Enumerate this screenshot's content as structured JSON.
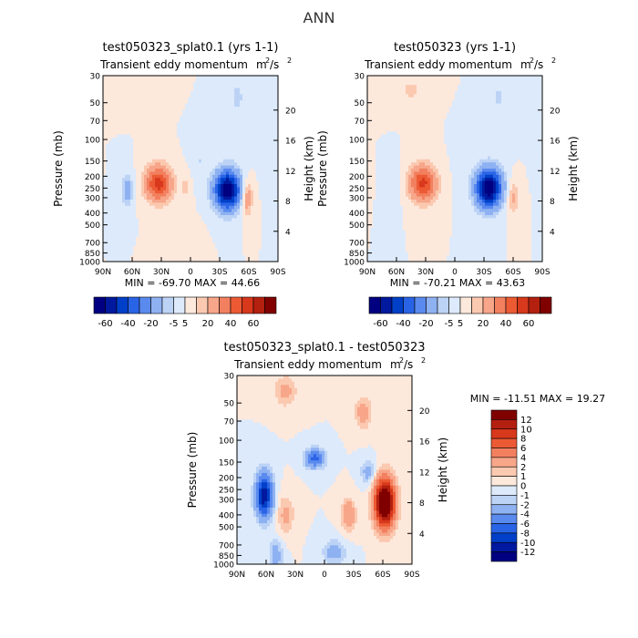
{
  "title": "ANN",
  "colors": {
    "neg": [
      "#000080",
      "#00199e",
      "#0040c8",
      "#2a64e6",
      "#5a8aee",
      "#8eb1f2",
      "#bcd3f6",
      "#ddeafb"
    ],
    "pos": [
      "#fde8dc",
      "#fbc9b0",
      "#f7a68a",
      "#f2805f",
      "#ec5a34",
      "#d8381b",
      "#b4200f",
      "#800000"
    ]
  },
  "chart_data": [
    {
      "type": "contour",
      "id": "p1",
      "title": "test050323_splat0.1 (yrs 1-1)",
      "subtitle": "Transient eddy momentum",
      "units_base": "m",
      "units_sup1": "2",
      "units_mid": "/s",
      "units_sup2": "2",
      "ylabel": "Pressure (mb)",
      "ylabel_right": "Height (km)",
      "yticks": [
        "30",
        "50",
        "70",
        "100",
        "150",
        "200",
        "250",
        "300",
        "400",
        "500",
        "700",
        "850",
        "1000"
      ],
      "ytick_values": [
        30,
        50,
        70,
        100,
        150,
        200,
        250,
        300,
        400,
        500,
        700,
        850,
        1000
      ],
      "height_ticks": [
        "4",
        "8",
        "12",
        "16",
        "20"
      ],
      "height_values": [
        4,
        8,
        12,
        16,
        20
      ],
      "xticks": [
        "90N",
        "60N",
        "30N",
        "0",
        "30S",
        "60S",
        "90S"
      ],
      "xtick_values": [
        90,
        60,
        30,
        0,
        -30,
        -60,
        -90
      ],
      "stats": "MIN = -69.70   MAX =  44.66",
      "cbar_labels": [
        "-60",
        "-40",
        "-20",
        "-5",
        "5",
        "20",
        "40",
        "60"
      ],
      "features": [
        {
          "lat": 33,
          "p": 230,
          "amp": 44.66,
          "slat": 9,
          "slogp": 0.22
        },
        {
          "lat": -38,
          "p": 260,
          "amp": -69.7,
          "slat": 9,
          "slogp": 0.25
        },
        {
          "lat": 65,
          "p": 260,
          "amp": -14,
          "slat": 4,
          "slogp": 0.22
        },
        {
          "lat": -58,
          "p": 300,
          "amp": 18,
          "slat": 4,
          "slogp": 0.22
        },
        {
          "lat": 5,
          "p": 250,
          "amp": 6,
          "slat": 4,
          "slogp": 0.2
        },
        {
          "lat": -10,
          "p": 150,
          "amp": -5,
          "slat": 6,
          "slogp": 0.3
        },
        {
          "lat": 45,
          "p": 40,
          "amp": 5,
          "slat": 10,
          "slogp": 0.2
        },
        {
          "lat": -48,
          "p": 45,
          "amp": -7,
          "slat": 5,
          "slogp": 0.25
        },
        {
          "lat": 10,
          "p": 600,
          "amp": 3,
          "slat": 10,
          "slogp": 0.2
        }
      ]
    },
    {
      "type": "contour",
      "id": "p2",
      "title": "test050323 (yrs 1-1)",
      "subtitle": "Transient eddy momentum",
      "units_base": "m",
      "units_sup1": "2",
      "units_mid": "/s",
      "units_sup2": "2",
      "ylabel": "Pressure (mb)",
      "ylabel_right": "Height (km)",
      "yticks": [
        "30",
        "50",
        "70",
        "100",
        "150",
        "200",
        "250",
        "300",
        "400",
        "500",
        "700",
        "850",
        "1000"
      ],
      "ytick_values": [
        30,
        50,
        70,
        100,
        150,
        200,
        250,
        300,
        400,
        500,
        700,
        850,
        1000
      ],
      "height_ticks": [
        "4",
        "8",
        "12",
        "16",
        "20"
      ],
      "height_values": [
        4,
        8,
        12,
        16,
        20
      ],
      "xticks": [
        "90N",
        "60N",
        "30N",
        "0",
        "30S",
        "60S",
        "90S"
      ],
      "xtick_values": [
        90,
        60,
        30,
        0,
        -30,
        -60,
        -90
      ],
      "stats": "MIN = -70.21   MAX =  43.63",
      "cbar_labels": [
        "-60",
        "-40",
        "-20",
        "-5",
        "5",
        "20",
        "40",
        "60"
      ],
      "features": [
        {
          "lat": 33,
          "p": 230,
          "amp": 43.63,
          "slat": 9,
          "slogp": 0.22
        },
        {
          "lat": -35,
          "p": 250,
          "amp": -70.21,
          "slat": 9,
          "slogp": 0.25
        },
        {
          "lat": -60,
          "p": 300,
          "amp": 12,
          "slat": 4,
          "slogp": 0.22
        },
        {
          "lat": 62,
          "p": 250,
          "amp": -5,
          "slat": 4,
          "slogp": 0.25
        },
        {
          "lat": -8,
          "p": 150,
          "amp": -4,
          "slat": 5,
          "slogp": 0.3
        },
        {
          "lat": 45,
          "p": 40,
          "amp": 6,
          "slat": 10,
          "slogp": 0.2
        },
        {
          "lat": -45,
          "p": 45,
          "amp": -6,
          "slat": 5,
          "slogp": 0.25
        }
      ]
    },
    {
      "type": "contour",
      "id": "p3",
      "title": "test050323_splat0.1 - test050323",
      "subtitle": "Transient eddy momentum",
      "units_base": "m",
      "units_sup1": "2",
      "units_mid": "/s",
      "units_sup2": "2",
      "ylabel": "Pressure (mb)",
      "ylabel_right": "Height (km)",
      "yticks": [
        "30",
        "50",
        "70",
        "100",
        "150",
        "200",
        "250",
        "300",
        "400",
        "500",
        "700",
        "850",
        "1000"
      ],
      "ytick_values": [
        30,
        50,
        70,
        100,
        150,
        200,
        250,
        300,
        400,
        500,
        700,
        850,
        1000
      ],
      "height_ticks": [
        "4",
        "8",
        "12",
        "16",
        "20"
      ],
      "height_values": [
        4,
        8,
        12,
        16,
        20
      ],
      "xticks": [
        "90N",
        "60N",
        "30N",
        "0",
        "30S",
        "60S",
        "90S"
      ],
      "xtick_values": [
        90,
        60,
        30,
        0,
        -30,
        -60,
        -90
      ],
      "stats": "MIN = -11.51   MAX =  19.27",
      "cbar_labels": [
        "12",
        "10",
        "8",
        "6",
        "4",
        "2",
        "1",
        "0",
        "-1",
        "-2",
        "-4",
        "-6",
        "-8",
        "-10",
        "-12"
      ],
      "features": [
        {
          "lat": 62,
          "p": 280,
          "amp": -11.51,
          "slat": 6,
          "slogp": 0.28
        },
        {
          "lat": -62,
          "p": 320,
          "amp": 19.27,
          "slat": 7,
          "slogp": 0.3
        },
        {
          "lat": 10,
          "p": 140,
          "amp": -7,
          "slat": 7,
          "slogp": 0.12
        },
        {
          "lat": -25,
          "p": 400,
          "amp": 4,
          "slat": 5,
          "slogp": 0.2
        },
        {
          "lat": -40,
          "p": 60,
          "amp": 3,
          "slat": 6,
          "slogp": 0.2
        },
        {
          "lat": 40,
          "p": 400,
          "amp": 2.5,
          "slat": 6,
          "slogp": 0.25
        },
        {
          "lat": 50,
          "p": 850,
          "amp": -3,
          "slat": 5,
          "slogp": 0.2
        },
        {
          "lat": 40,
          "p": 40,
          "amp": 2.5,
          "slat": 8,
          "slogp": 0.2
        },
        {
          "lat": -10,
          "p": 800,
          "amp": -3,
          "slat": 8,
          "slogp": 0.15
        },
        {
          "lat": -45,
          "p": 180,
          "amp": -3,
          "slat": 5,
          "slogp": 0.15
        }
      ]
    }
  ]
}
